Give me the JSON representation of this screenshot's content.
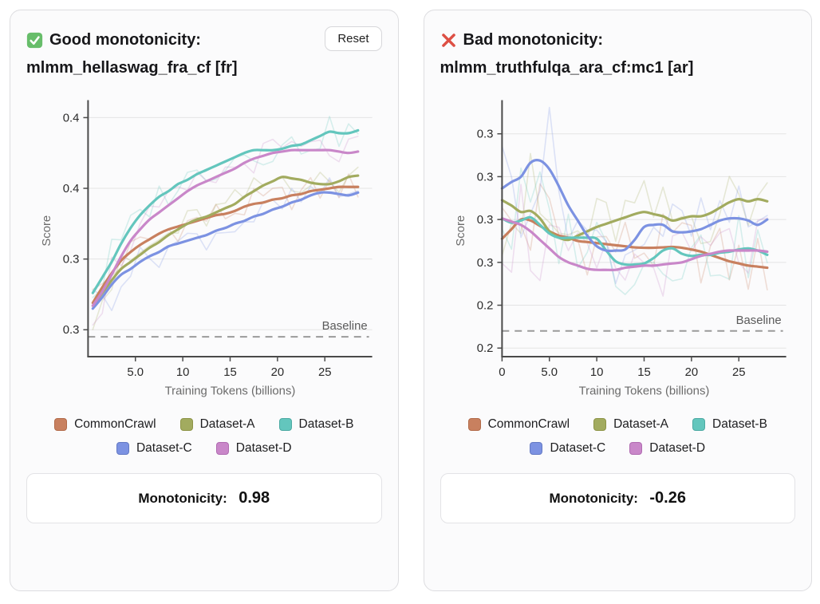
{
  "panels": [
    {
      "header": {
        "icon": "check-emoji",
        "title": "Good monotonicity:",
        "subtitle": "mlmm_hellaswag_fra_cf [fr]",
        "reset_label": "Reset"
      },
      "chart_data": {
        "type": "line",
        "xlabel": "Training Tokens (billions)",
        "ylabel": "Score",
        "xlim": [
          0,
          30
        ],
        "ylim": [
          0.3155,
          0.4045
        ],
        "grid": true,
        "xticks": [
          {
            "v": 5,
            "label": "5.0"
          },
          {
            "v": 10,
            "label": "10"
          },
          {
            "v": 15,
            "label": "15"
          },
          {
            "v": 20,
            "label": "20"
          },
          {
            "v": 25,
            "label": "25"
          }
        ],
        "yticks": [
          {
            "v": 0.4,
            "label": "0.4"
          },
          {
            "v": 0.375,
            "label": "0.4"
          },
          {
            "v": 0.35,
            "label": "0.3"
          },
          {
            "v": 0.325,
            "label": "0.3"
          }
        ],
        "baseline": {
          "value": 0.3225,
          "label": "Baseline"
        },
        "raw_overlay": {
          "amplitude": 0.0055,
          "early_boost": 1.8,
          "early_n": 3
        },
        "x": [
          0.5,
          1.5,
          2.5,
          3.5,
          4.5,
          5.5,
          6.5,
          7.5,
          8.5,
          9.5,
          10.5,
          11.5,
          12.5,
          13.5,
          14.5,
          15.5,
          16.5,
          17.5,
          18.5,
          19.5,
          20.5,
          21.5,
          22.5,
          23.5,
          24.5,
          25.5,
          26.5,
          27.5,
          28.5
        ],
        "series": [
          {
            "name": "CommonCrawl",
            "color": "#c8805f",
            "border": "#b26b4a",
            "values": [
              0.3345,
              0.34,
              0.345,
              0.3495,
              0.3525,
              0.355,
              0.357,
              0.359,
              0.3605,
              0.3615,
              0.3625,
              0.3635,
              0.3645,
              0.3655,
              0.366,
              0.367,
              0.3685,
              0.3695,
              0.37,
              0.371,
              0.3715,
              0.3725,
              0.373,
              0.374,
              0.3745,
              0.375,
              0.3755,
              0.3755,
              0.3755
            ]
          },
          {
            "name": "Dataset-A",
            "color": "#a2ab5f",
            "border": "#8d9447",
            "values": [
              0.3335,
              0.338,
              0.3425,
              0.3465,
              0.349,
              0.3515,
              0.354,
              0.356,
              0.3585,
              0.3605,
              0.3625,
              0.364,
              0.365,
              0.3665,
              0.368,
              0.3695,
              0.372,
              0.374,
              0.376,
              0.3775,
              0.379,
              0.3785,
              0.378,
              0.377,
              0.3765,
              0.3765,
              0.3775,
              0.379,
              0.3795
            ]
          },
          {
            "name": "Dataset-B",
            "color": "#63c6bd",
            "border": "#4daaa3",
            "values": [
              0.338,
              0.3435,
              0.349,
              0.3555,
              0.361,
              0.3655,
              0.369,
              0.372,
              0.374,
              0.3765,
              0.378,
              0.38,
              0.3815,
              0.383,
              0.3845,
              0.386,
              0.3875,
              0.3885,
              0.3885,
              0.3885,
              0.389,
              0.39,
              0.3905,
              0.392,
              0.3935,
              0.395,
              0.3945,
              0.3945,
              0.3955
            ]
          },
          {
            "name": "Dataset-C",
            "color": "#7c92e2",
            "border": "#6379c4",
            "values": [
              0.3325,
              0.3365,
              0.341,
              0.3445,
              0.3465,
              0.349,
              0.351,
              0.3525,
              0.3545,
              0.3555,
              0.3565,
              0.3575,
              0.3585,
              0.36,
              0.361,
              0.3625,
              0.3635,
              0.365,
              0.366,
              0.3675,
              0.3685,
              0.37,
              0.371,
              0.3725,
              0.3735,
              0.3735,
              0.373,
              0.3725,
              0.3735
            ]
          },
          {
            "name": "Dataset-D",
            "color": "#c987c9",
            "border": "#b06bb1",
            "values": [
              0.3335,
              0.3385,
              0.3445,
              0.351,
              0.3565,
              0.3605,
              0.364,
              0.3665,
              0.369,
              0.3715,
              0.374,
              0.376,
              0.3775,
              0.379,
              0.3805,
              0.382,
              0.384,
              0.3855,
              0.3865,
              0.3875,
              0.388,
              0.3885,
              0.3885,
              0.3885,
              0.3885,
              0.3885,
              0.388,
              0.3875,
              0.388
            ]
          }
        ]
      },
      "footer": {
        "label": "Monotonicity:",
        "value": "0.98"
      }
    },
    {
      "header": {
        "icon": "cross-emoji",
        "title": "Bad monotonicity:",
        "subtitle": "mlmm_truthfulqa_ara_cf:mc1 [ar]"
      },
      "chart_data": {
        "type": "line",
        "xlabel": "Training Tokens (billions)",
        "ylabel": "Score",
        "xlim": [
          0,
          30
        ],
        "ylim": [
          0.216,
          0.3335
        ],
        "grid": true,
        "xticks": [
          {
            "v": 0,
            "label": "0"
          },
          {
            "v": 5,
            "label": "5.0"
          },
          {
            "v": 10,
            "label": "10"
          },
          {
            "v": 15,
            "label": "15"
          },
          {
            "v": 20,
            "label": "20"
          },
          {
            "v": 25,
            "label": "25"
          }
        ],
        "yticks": [
          {
            "v": 0.32,
            "label": "0.3"
          },
          {
            "v": 0.3,
            "label": "0.3"
          },
          {
            "v": 0.28,
            "label": "0.3"
          },
          {
            "v": 0.26,
            "label": "0.3"
          },
          {
            "v": 0.24,
            "label": "0.2"
          },
          {
            "v": 0.22,
            "label": "0.2"
          }
        ],
        "baseline": {
          "value": 0.228,
          "label": "Baseline"
        },
        "raw_overlay": {
          "amplitude": 0.016,
          "early_boost": 1.9,
          "early_n": 6
        },
        "x": [
          0,
          1,
          2,
          3,
          4,
          5,
          6,
          7,
          8,
          9,
          10,
          11,
          12,
          13,
          14,
          15,
          16,
          17,
          18,
          19,
          20,
          21,
          22,
          23,
          24,
          25,
          26,
          27,
          28
        ],
        "series": [
          {
            "name": "CommonCrawl",
            "color": "#c8805f",
            "border": "#b26b4a",
            "values": [
              0.271,
              0.2755,
              0.28,
              0.2795,
              0.277,
              0.2745,
              0.2725,
              0.2715,
              0.27,
              0.2695,
              0.269,
              0.2685,
              0.268,
              0.2675,
              0.267,
              0.2668,
              0.2668,
              0.267,
              0.2672,
              0.2668,
              0.266,
              0.265,
              0.2635,
              0.262,
              0.2605,
              0.2595,
              0.2585,
              0.258,
              0.2575
            ]
          },
          {
            "name": "Dataset-A",
            "color": "#a2ab5f",
            "border": "#8d9447",
            "values": [
              0.289,
              0.2865,
              0.2835,
              0.284,
              0.2805,
              0.2745,
              0.2715,
              0.2705,
              0.2725,
              0.2745,
              0.2765,
              0.278,
              0.2795,
              0.281,
              0.2825,
              0.2835,
              0.2825,
              0.2815,
              0.2795,
              0.2805,
              0.2815,
              0.2815,
              0.283,
              0.2855,
              0.288,
              0.2895,
              0.2885,
              0.2895,
              0.2885
            ]
          },
          {
            "name": "Dataset-B",
            "color": "#63c6bd",
            "border": "#4daaa3",
            "values": [
              0.2805,
              0.2785,
              0.2795,
              0.281,
              0.2775,
              0.2735,
              0.2715,
              0.2715,
              0.2715,
              0.2715,
              0.271,
              0.2655,
              0.2605,
              0.259,
              0.259,
              0.2595,
              0.262,
              0.2655,
              0.2665,
              0.264,
              0.263,
              0.2635,
              0.2635,
              0.2645,
              0.265,
              0.266,
              0.2665,
              0.2655,
              0.2635
            ]
          },
          {
            "name": "Dataset-C",
            "color": "#7c92e2",
            "border": "#6379c4",
            "values": [
              0.2945,
              0.2975,
              0.3,
              0.3065,
              0.3075,
              0.3035,
              0.2955,
              0.2865,
              0.2795,
              0.2725,
              0.2675,
              0.2655,
              0.2655,
              0.266,
              0.2705,
              0.2765,
              0.2775,
              0.2775,
              0.2745,
              0.274,
              0.2745,
              0.2755,
              0.2775,
              0.2795,
              0.2805,
              0.2805,
              0.2795,
              0.2775,
              0.28
            ]
          },
          {
            "name": "Dataset-D",
            "color": "#c987c9",
            "border": "#b06bb1",
            "values": [
              0.2805,
              0.279,
              0.2775,
              0.2745,
              0.2705,
              0.2665,
              0.2625,
              0.26,
              0.2585,
              0.257,
              0.2565,
              0.2565,
              0.2565,
              0.2575,
              0.258,
              0.2585,
              0.2585,
              0.259,
              0.2595,
              0.26,
              0.2615,
              0.263,
              0.264,
              0.265,
              0.2655,
              0.2655,
              0.2655,
              0.2655,
              0.265
            ]
          }
        ]
      },
      "footer": {
        "label": "Monotonicity:",
        "value": "-0.26"
      }
    }
  ],
  "colors": {
    "accent_green": "#67bd6a",
    "accent_red": "#dd4f44",
    "axis": "#4a4a4a",
    "grid": "#e4e4e4",
    "baseline": "#9a9a9a"
  }
}
